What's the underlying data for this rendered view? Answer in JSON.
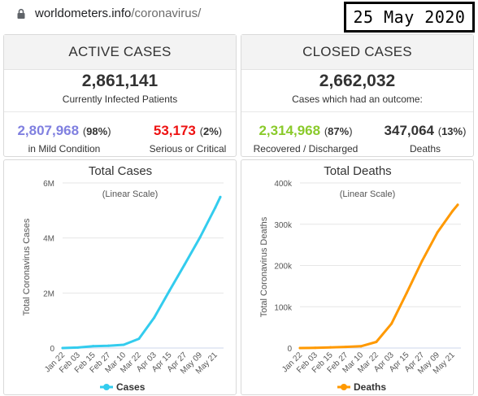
{
  "browser": {
    "url_host": "worldometers.info",
    "url_path": "/coronavirus/"
  },
  "date_overlay": "25 May 2020",
  "active_cases": {
    "title": "ACTIVE CASES",
    "total": "2,861,141",
    "total_label": "Currently Infected Patients",
    "mild_value": "2,807,968",
    "mild_pct": "98%",
    "mild_label": "in Mild Condition",
    "serious_value": "53,173",
    "serious_pct": "2%",
    "serious_label": "Serious or Critical"
  },
  "closed_cases": {
    "title": "CLOSED CASES",
    "total": "2,662,032",
    "total_label": "Cases which had an outcome:",
    "recovered_value": "2,314,968",
    "recovered_pct": "87%",
    "recovered_label": "Recovered / Discharged",
    "deaths_value": "347,064",
    "deaths_pct": "13%",
    "deaths_label": "Deaths"
  },
  "colors": {
    "mild": "#8080e0",
    "serious": "#ee1111",
    "recovered": "#8ACA2B",
    "cases_line": "#33ccee",
    "deaths_line": "#ff9900"
  },
  "chart_data": [
    {
      "type": "line",
      "title": "Total Cases",
      "subtitle": "(Linear Scale)",
      "ylabel": "Total Coronavirus Cases",
      "xlabel": "",
      "x": [
        "Jan 22",
        "Feb 03",
        "Feb 15",
        "Feb 27",
        "Mar 10",
        "Mar 22",
        "Apr 03",
        "Apr 15",
        "Apr 27",
        "May 09",
        "May 21",
        "May 25"
      ],
      "x_ticks": [
        "Jan 22",
        "Feb 03",
        "Feb 15",
        "Feb 27",
        "Mar 10",
        "Mar 22",
        "Apr 03",
        "Apr 15",
        "Apr 27",
        "May 09",
        "May 21"
      ],
      "y_ticks": [
        "0",
        "2M",
        "4M",
        "6M"
      ],
      "ylim": [
        0,
        6000000
      ],
      "series": [
        {
          "name": "Cases",
          "values": [
            580,
            17400,
            69000,
            84000,
            119000,
            337000,
            1100000,
            2080000,
            3040000,
            4020000,
            5100000,
            5490000
          ]
        }
      ],
      "legend_position": "bottom"
    },
    {
      "type": "line",
      "title": "Total Deaths",
      "subtitle": "(Linear Scale)",
      "ylabel": "Total Coronavirus Deaths",
      "xlabel": "",
      "x": [
        "Jan 22",
        "Feb 03",
        "Feb 15",
        "Feb 27",
        "Mar 10",
        "Mar 22",
        "Apr 03",
        "Apr 15",
        "Apr 27",
        "May 09",
        "May 21",
        "May 25"
      ],
      "x_ticks": [
        "Jan 22",
        "Feb 03",
        "Feb 15",
        "Feb 27",
        "Mar 10",
        "Mar 22",
        "Apr 03",
        "Apr 15",
        "Apr 27",
        "May 09",
        "May 21"
      ],
      "y_ticks": [
        "0",
        "100k",
        "200k",
        "300k",
        "400k"
      ],
      "ylim": [
        0,
        400000
      ],
      "series": [
        {
          "name": "Deaths",
          "values": [
            17,
            427,
            1666,
            2800,
            4300,
            14700,
            59000,
            134000,
            211000,
            280000,
            332000,
            347000
          ]
        }
      ],
      "legend_position": "bottom"
    }
  ]
}
